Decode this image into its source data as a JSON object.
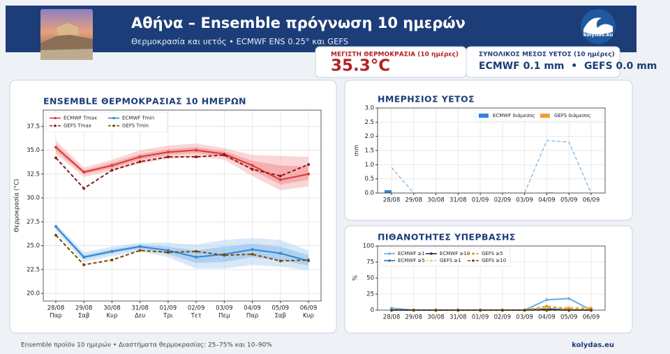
{
  "header": {
    "title": "Αθήνα – Ensemble πρόγνωση 10 ημερών",
    "subtitle": "Θερμοκρασία και υετός • ECMWF ENS 0.25° και GEFS",
    "logo": "kolydas.eu"
  },
  "cards": {
    "max_temp": {
      "label": "ΜΕΓΙΣΤΗ ΘΕΡΜΟΚΡΑΣΙΑ (10 ημέρες)",
      "value": "35.3°C"
    },
    "rain": {
      "label": "ΣΥΝΟΛΙΚΟΣ ΜΕΣΟΣ ΥΕΤΟΣ (10 ημέρες)",
      "value": "ECMWF 0.1 mm  •  GEFS 0.0 mm"
    }
  },
  "footer": {
    "note": "Ensemble προϊόν 10 ημερών • Διαστήματα θερμοκρασίας: 25–75% και 10–90%",
    "site": "kolydas.eu"
  },
  "chart_data": [
    {
      "type": "line",
      "title": "ENSEMBLE ΘΕΡΜΟΚΡΑΣΙΑΣ 10 ΗΜΕΡΩΝ",
      "y_label": "Θερμοκρασία (°C)",
      "categories": [
        "28/08",
        "29/08",
        "30/08",
        "31/08",
        "01/09",
        "02/09",
        "03/09",
        "04/09",
        "05/09",
        "06/09"
      ],
      "weekdays": [
        "Παρ",
        "Σαβ",
        "Κυρ",
        "Δευ",
        "Τρι",
        "Τετ",
        "Πεμ",
        "Παρ",
        "Σαβ",
        "Κυρ"
      ],
      "ylim": [
        19.2,
        39.2
      ],
      "yticks": [
        {
          "value": 20,
          "label": "20.0"
        },
        {
          "value": 22.5,
          "label": "22.5"
        },
        {
          "value": 25,
          "label": "25.0"
        },
        {
          "value": 27.5,
          "label": "27.5"
        },
        {
          "value": 30,
          "label": "30.0"
        },
        {
          "value": 32.5,
          "label": "32.5"
        },
        {
          "value": 35,
          "label": "35.0"
        },
        {
          "value": 37.5,
          "label": "37.5"
        }
      ],
      "grid": true,
      "markers": true,
      "legend": "upper left",
      "legend_columns": 2,
      "bands": [
        {
          "color": "#f4a3a3",
          "lower": [
            34.6,
            32.2,
            32.8,
            33.6,
            34.1,
            34.3,
            34.0,
            32.3,
            30.8,
            31.2
          ],
          "upper": [
            36.0,
            33.2,
            34.0,
            35.0,
            35.5,
            35.7,
            35.2,
            34.5,
            34.4,
            34.3
          ]
        },
        {
          "color": "#f08080",
          "lower": [
            34.9,
            32.5,
            33.1,
            34.0,
            34.5,
            34.7,
            34.3,
            32.9,
            31.4,
            31.9
          ],
          "upper": [
            35.6,
            32.9,
            33.7,
            34.6,
            35.1,
            35.3,
            34.9,
            33.9,
            33.4,
            33.3
          ]
        },
        {
          "color": "#a8cdf0",
          "lower": [
            26.6,
            23.3,
            23.9,
            24.4,
            23.8,
            22.6,
            22.6,
            23.0,
            22.8,
            22.4
          ],
          "upper": [
            27.3,
            24.3,
            24.9,
            25.3,
            25.3,
            25.1,
            25.6,
            25.8,
            25.6,
            24.5
          ]
        },
        {
          "color": "#7fb6e8",
          "lower": [
            26.8,
            23.6,
            24.2,
            24.7,
            24.1,
            23.2,
            23.3,
            23.8,
            23.5,
            22.9
          ],
          "upper": [
            27.1,
            24.0,
            24.6,
            25.1,
            24.9,
            24.5,
            24.9,
            25.2,
            24.9,
            24.0
          ]
        }
      ],
      "series": [
        {
          "name": "ECMWF Tmax",
          "color": "#d9393b",
          "style": "solid",
          "values": [
            35.3,
            32.7,
            33.4,
            34.3,
            34.8,
            35.0,
            34.6,
            33.4,
            31.9,
            32.5
          ]
        },
        {
          "name": "GEFS Tmax",
          "color": "#8b1a1a",
          "style": "dashed",
          "values": [
            34.2,
            31.0,
            32.9,
            33.8,
            34.3,
            34.3,
            34.5,
            33.0,
            32.3,
            33.5
          ]
        },
        {
          "name": "ECMWF Tmin",
          "color": "#2f86d6",
          "style": "solid",
          "values": [
            27.0,
            23.8,
            24.4,
            24.9,
            24.5,
            23.8,
            24.1,
            24.6,
            24.2,
            23.4
          ]
        },
        {
          "name": "GEFS Tmin",
          "color": "#7a4a00",
          "style": "dashed",
          "values": [
            26.1,
            23.0,
            23.5,
            24.5,
            24.3,
            24.4,
            24.0,
            24.1,
            23.4,
            23.5
          ]
        }
      ]
    },
    {
      "type": "bar",
      "title": "ΗΜΕΡΗΣΙΟΣ ΥΕΤΟΣ",
      "y_label": "mm",
      "categories": [
        "28/08",
        "29/08",
        "30/08",
        "31/08",
        "01/09",
        "02/09",
        "03/09",
        "04/09",
        "05/09",
        "06/09"
      ],
      "ylim": [
        0,
        3
      ],
      "yticks": [
        {
          "value": 0,
          "label": "0.0"
        },
        {
          "value": 0.5,
          "label": "0.5"
        },
        {
          "value": 1,
          "label": "1.0"
        },
        {
          "value": 1.5,
          "label": "1.5"
        },
        {
          "value": 2,
          "label": "2.0"
        },
        {
          "value": 2.5,
          "label": "2.5"
        },
        {
          "value": 3,
          "label": "3.0"
        }
      ],
      "grid": true,
      "markers": false,
      "legend": "upper right",
      "legend_columns": 2,
      "series": [
        {
          "name": "ECMWF διάμεσος",
          "color": "#2f86d6",
          "mark": "bar",
          "values": [
            0.1,
            0,
            0,
            0,
            0,
            0,
            0,
            0,
            0,
            0
          ]
        },
        {
          "name": "GEFS διάμεσος",
          "color": "#f0a030",
          "mark": "bar",
          "values": [
            0,
            0,
            0,
            0,
            0,
            0,
            0,
            0.02,
            0,
            0
          ]
        },
        {
          "color": "#5a9fd4",
          "mark": "line",
          "style": "dashed",
          "values": [
            0.9,
            0,
            0,
            0,
            0,
            0,
            0,
            1.85,
            1.8,
            0
          ]
        }
      ]
    },
    {
      "type": "line",
      "title": "ΠΙΘΑΝΟΤΗΤΕΣ ΥΠΕΡΒΑΣΗΣ",
      "y_label": "%",
      "categories": [
        "28/08",
        "29/08",
        "30/08",
        "31/08",
        "01/09",
        "02/09",
        "03/09",
        "04/09",
        "05/09",
        "06/09"
      ],
      "ylim": [
        0,
        100
      ],
      "yticks": [
        0,
        25,
        50,
        75,
        100
      ],
      "grid": true,
      "markers": true,
      "legend": "upper left",
      "legend_columns": 3,
      "series": [
        {
          "name": "ECMWF ≥1",
          "color": "#6aaee6",
          "style": "solid",
          "values": [
            3,
            0,
            0,
            0,
            0,
            0,
            0,
            16,
            18,
            0
          ]
        },
        {
          "name": "ECMWF ≥5",
          "color": "#2a6db5",
          "style": "solid",
          "values": [
            0,
            0,
            0,
            0,
            0,
            0,
            0,
            2,
            0,
            0
          ]
        },
        {
          "name": "ECMWF ≥10",
          "color": "#1b2f5a",
          "style": "solid",
          "values": [
            0,
            0,
            0,
            0,
            0,
            0,
            0,
            1,
            0,
            0
          ]
        },
        {
          "name": "GEFS ≥1",
          "color": "#f5c77a",
          "style": "dashed",
          "values": [
            0,
            0,
            0,
            0,
            0,
            0,
            0,
            4,
            4,
            4
          ]
        },
        {
          "name": "GEFS ≥5",
          "color": "#e09a2a",
          "style": "dashed",
          "values": [
            0,
            0,
            0,
            0,
            0,
            0,
            0,
            6,
            2,
            2
          ]
        },
        {
          "name": "GEFS ≥10",
          "color": "#7a4a00",
          "style": "dashed",
          "values": [
            0,
            0,
            0,
            0,
            0,
            0,
            0,
            0,
            0,
            0
          ]
        }
      ]
    }
  ]
}
